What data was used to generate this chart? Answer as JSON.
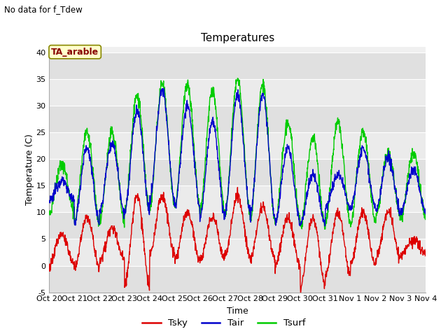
{
  "title": "Temperatures",
  "subtitle": "No data for f_Tdew",
  "xlabel": "Time",
  "ylabel": "Temperature (C)",
  "ylim": [
    -5,
    41
  ],
  "yticks": [
    -5,
    0,
    5,
    10,
    15,
    20,
    25,
    30,
    35,
    40
  ],
  "annotation": "TA_arable",
  "annotation_color": "#880000",
  "annotation_bg": "#ffffcc",
  "annotation_border": "#888800",
  "fig_bg": "#ffffff",
  "plot_bg": "#f0f0f0",
  "band_colors": [
    "#e8e8e8",
    "#f0f0f0"
  ],
  "line_colors": {
    "Tsky": "#dd0000",
    "Tair": "#0000cc",
    "Tsurf": "#00cc00"
  },
  "x_tick_labels": [
    "Oct 20",
    "Oct 21",
    "Oct 22",
    "Oct 23",
    "Oct 24",
    "Oct 25",
    "Oct 26",
    "Oct 27",
    "Oct 28",
    "Oct 29",
    "Oct 30",
    "Oct 31",
    "Nov 1",
    "Nov 2",
    "Nov 3",
    "Nov 4"
  ],
  "n_days": 15,
  "pts_per_day": 96,
  "tair_peaks": [
    16,
    22,
    23,
    29,
    33,
    30,
    27,
    32,
    32,
    22,
    17,
    17,
    22,
    20,
    18
  ],
  "tair_lows": [
    12,
    8,
    10,
    10,
    12,
    11,
    9,
    10,
    9,
    8,
    8,
    11,
    11,
    10,
    10
  ],
  "tsurf_peaks": [
    19,
    25,
    25,
    32,
    34,
    34,
    33,
    35,
    34,
    27,
    24,
    27,
    25,
    21,
    21
  ],
  "tsurf_lows": [
    10,
    8,
    8,
    10,
    11,
    11,
    10,
    10,
    8,
    8,
    7,
    8,
    8,
    9,
    9
  ],
  "tsky_peaks": [
    6,
    9,
    7,
    13,
    13,
    10,
    9,
    13,
    11,
    9,
    9,
    10,
    10,
    10,
    5
  ],
  "tsky_lows": [
    0,
    -0.5,
    1,
    -4,
    2,
    1,
    1,
    2,
    1,
    0,
    -4,
    -2,
    0,
    1,
    2
  ]
}
